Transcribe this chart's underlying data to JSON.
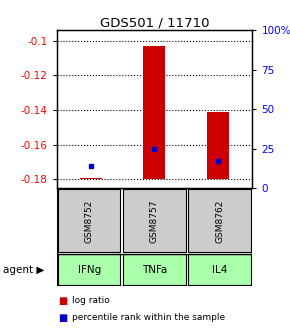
{
  "title": "GDS501 / 11710",
  "samples": [
    "GSM8752",
    "GSM8757",
    "GSM8762"
  ],
  "agents": [
    "IFNg",
    "TNFa",
    "IL4"
  ],
  "log_ratios": [
    -0.179,
    -0.103,
    -0.141
  ],
  "percentile_ranks": [
    14,
    25,
    17
  ],
  "bar_bottom": -0.18,
  "ylim_left": [
    -0.185,
    -0.094
  ],
  "yticks_left": [
    -0.18,
    -0.16,
    -0.14,
    -0.12,
    -0.1
  ],
  "ytick_labels_left": [
    "-0.18",
    "-0.16",
    "-0.14",
    "-0.12",
    "-0.1"
  ],
  "ylim_right": [
    0,
    100
  ],
  "yticks_right": [
    0,
    25,
    50,
    75,
    100
  ],
  "ytick_labels_right": [
    "0",
    "25",
    "50",
    "75",
    "100%"
  ],
  "bar_color": "#cc0000",
  "pct_color": "#0000cc",
  "sample_bg": "#cccccc",
  "agent_bg": "#aaffaa",
  "bar_width": 0.35,
  "legend_log_ratio": "log ratio",
  "legend_pct": "percentile rank within the sample",
  "agent_label": "agent"
}
